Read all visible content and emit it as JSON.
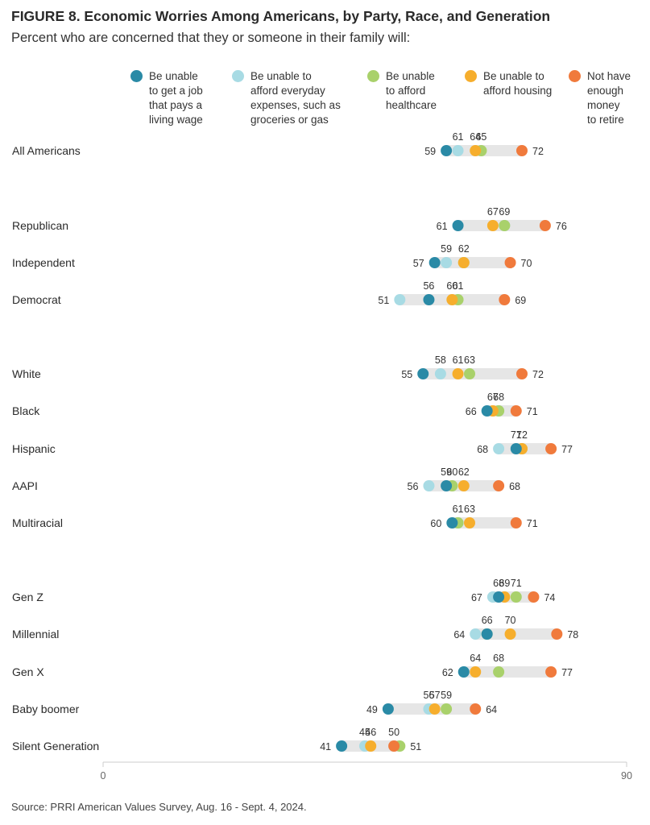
{
  "title": "FIGURE 8.  Economic Worries Among Americans, by Party, Race, and Generation",
  "subtitle": "Percent who are concerned that they or someone in their family will:",
  "source": "Source: PRRI American Values Survey, Aug. 16 - Sept. 4, 2024.",
  "chart_data": {
    "type": "scatter",
    "xlim": [
      0,
      90
    ],
    "x_tick_labels": [
      "0",
      "90"
    ],
    "series": [
      {
        "name": "Be unable\nto get a job\nthat pays a\nliving wage",
        "color": "#2a8aa6"
      },
      {
        "name": "Be unable to\nafford everyday\nexpenses, such as\ngroceries or gas",
        "color": "#a8dbe4"
      },
      {
        "name": "Be unable\nto afford\nhealthcare",
        "color": "#a9d16b"
      },
      {
        "name": "Be unable to\nafford housing",
        "color": "#f6ae2d"
      },
      {
        "name": "Not have\nenough\nmoney\nto retire",
        "color": "#f07a3c"
      }
    ],
    "rows": [
      {
        "label": "All Americans",
        "values": [
          59,
          61,
          65,
          64,
          72
        ]
      },
      {
        "label": "Republican",
        "values": [
          61,
          69,
          69,
          67,
          76
        ]
      },
      {
        "label": "Independent",
        "values": [
          57,
          59,
          62,
          62,
          70
        ]
      },
      {
        "label": "Democrat",
        "values": [
          56,
          51,
          61,
          60,
          69
        ]
      },
      {
        "label": "White",
        "values": [
          55,
          58,
          63,
          61,
          72
        ]
      },
      {
        "label": "Black",
        "values": [
          66,
          68,
          68,
          67,
          71
        ]
      },
      {
        "label": "Hispanic",
        "values": [
          71,
          68,
          72,
          72,
          77
        ]
      },
      {
        "label": "AAPI",
        "values": [
          59,
          56,
          60,
          62,
          68
        ]
      },
      {
        "label": "Multiracial",
        "values": [
          60,
          61,
          61,
          63,
          71
        ]
      },
      {
        "label": "Gen Z",
        "values": [
          68,
          67,
          71,
          69,
          74
        ]
      },
      {
        "label": "Millennial",
        "values": [
          66,
          64,
          66,
          70,
          78
        ]
      },
      {
        "label": "Gen X",
        "values": [
          62,
          62,
          68,
          64,
          77
        ]
      },
      {
        "label": "Baby boomer",
        "values": [
          49,
          56,
          59,
          57,
          64
        ]
      },
      {
        "label": "Silent Generation",
        "values": [
          41,
          45,
          51,
          46,
          50
        ]
      }
    ],
    "label_texts": [
      {
        "left": "59",
        "right": "72",
        "above": [
          "61",
          "64",
          "65"
        ]
      },
      {
        "left": "61",
        "right": "76",
        "above": [
          "67",
          "69"
        ]
      },
      {
        "left": "57",
        "right": "70",
        "above": [
          "59",
          "62"
        ]
      },
      {
        "left": "51",
        "right": "69",
        "above": [
          "56",
          "60",
          "61"
        ]
      },
      {
        "left": "55",
        "right": "72",
        "above": [
          "58",
          "61",
          "63"
        ]
      },
      {
        "left": "66",
        "right": "71",
        "above": [
          "67",
          "68"
        ]
      },
      {
        "left": "68",
        "right": "77",
        "above": [
          "71",
          "72"
        ]
      },
      {
        "left": "56",
        "right": "68",
        "above": [
          "59",
          "60",
          "62"
        ]
      },
      {
        "left": "60",
        "right": "71",
        "above": [
          "61",
          "63"
        ]
      },
      {
        "left": "67",
        "right": "74",
        "above": [
          "68",
          "69",
          "71"
        ]
      },
      {
        "left": "64",
        "right": "78",
        "above": [
          "66",
          "70"
        ]
      },
      {
        "left": "62",
        "right": "77",
        "above": [
          "64",
          "68"
        ]
      },
      {
        "left": "49",
        "right": "64",
        "above": [
          "56",
          "57",
          "59"
        ]
      },
      {
        "left": "41",
        "right": "51",
        "above": [
          "45",
          "46",
          "50"
        ]
      }
    ]
  }
}
